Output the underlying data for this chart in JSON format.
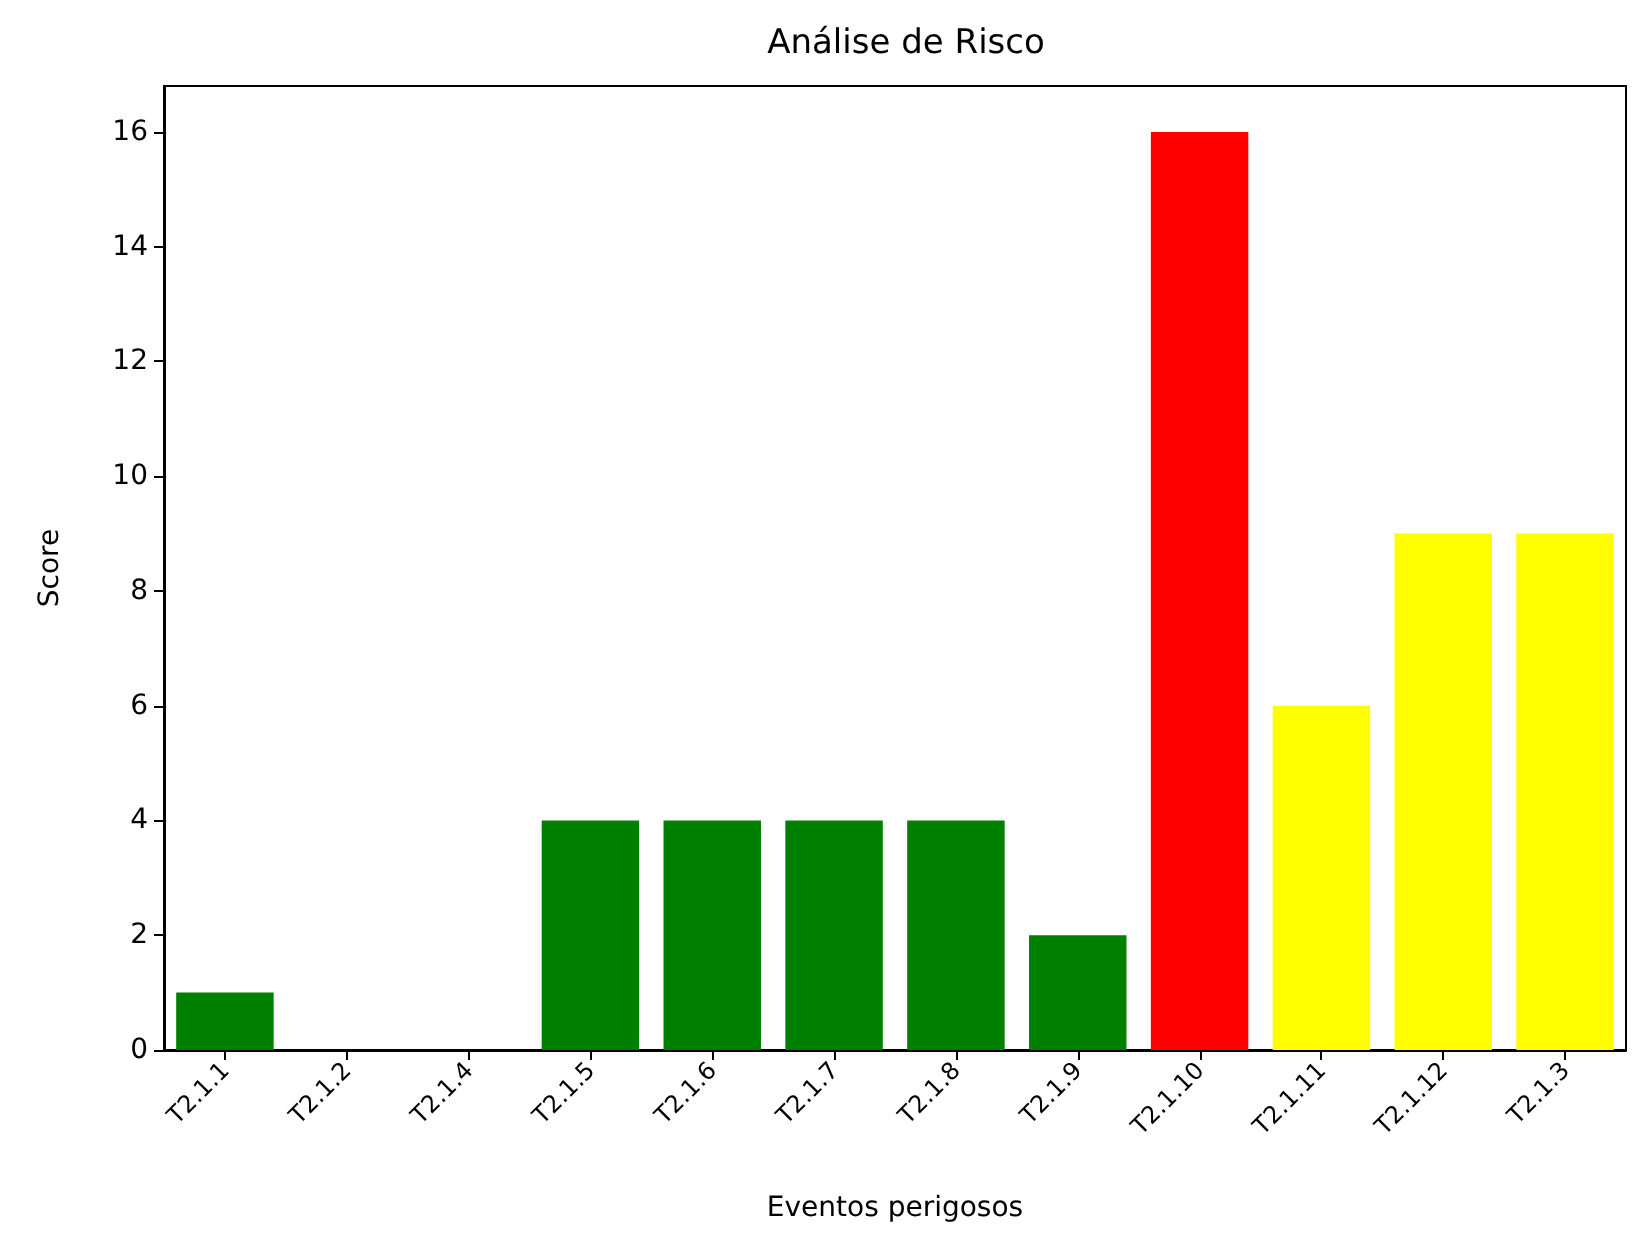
{
  "chart_data": {
    "type": "bar",
    "title": "Análise de Risco",
    "xlabel": "Eventos perigosos",
    "ylabel": "Score",
    "categories": [
      "T2.1.1",
      "T2.1.2",
      "T2.1.4",
      "T2.1.5",
      "T2.1.6",
      "T2.1.7",
      "T2.1.8",
      "T2.1.9",
      "T2.1.10",
      "T2.1.11",
      "T2.1.12",
      "T2.1.3"
    ],
    "values": [
      1,
      0,
      0,
      4,
      4,
      4,
      4,
      2,
      16,
      6,
      9,
      9
    ],
    "colors": [
      "#008000",
      "#008000",
      "#008000",
      "#008000",
      "#008000",
      "#008000",
      "#008000",
      "#008000",
      "#ff0000",
      "#ffff00",
      "#ffff00",
      "#ffff00"
    ],
    "ylim": [
      0,
      16.8
    ],
    "yticks": [
      0,
      2,
      4,
      6,
      8,
      10,
      12,
      14,
      16
    ],
    "grid": false
  }
}
